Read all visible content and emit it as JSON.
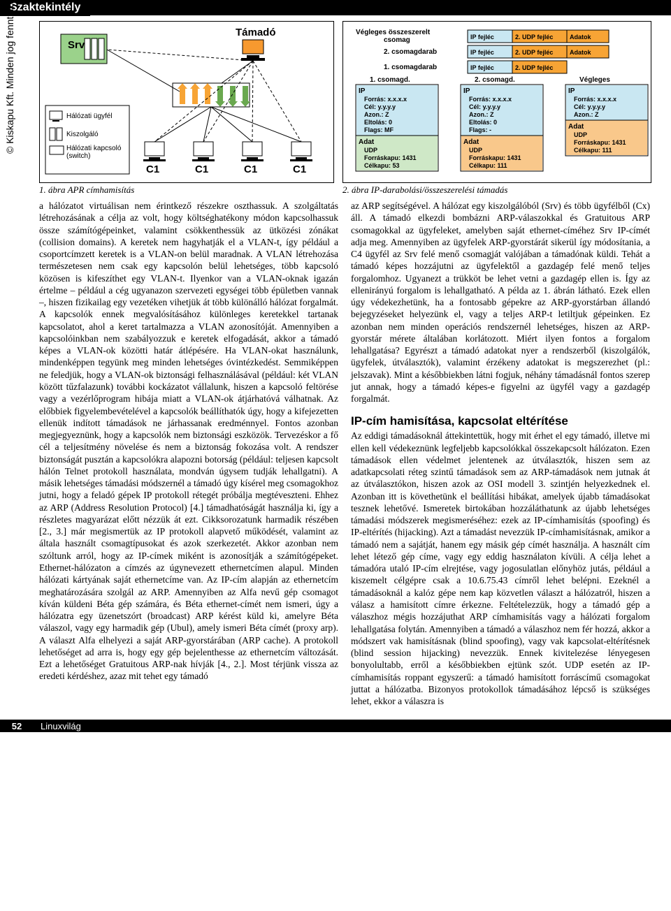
{
  "header": {
    "section": "Szaktekintély"
  },
  "copyright": "© Kiskapu Kft. Minden jog fenntartva",
  "footer": {
    "page": "52",
    "magazine": "Linuxvilág"
  },
  "fig1": {
    "caption": "1. ábra  APR címhamisítás",
    "srv_label": "Srv",
    "attacker_label": "Támadó",
    "client_labels": [
      "C1",
      "C1",
      "C1",
      "C1"
    ],
    "legend": {
      "items": [
        {
          "label": "Hálózati ügyfél"
        },
        {
          "label": "Kiszolgáló"
        },
        {
          "label": "Hálózati kapcsoló\n(switch)"
        }
      ]
    },
    "colors": {
      "border": "#000000",
      "srv_fill": "#9bd28b",
      "attacker_fill": "#f7992f",
      "client_fill": "#ffffff",
      "switch_body": "#ffffff",
      "arrow": "#000000",
      "dash": "#000000"
    }
  },
  "fig2": {
    "caption": "2. ábra  IP-darabolási/összeszerelési támadás",
    "rows_labels": [
      "Végleges összeszerelt csomag",
      "2. csomagdarab",
      "1. csomagdarab"
    ],
    "cell_labels": {
      "ip": "IP fejléc",
      "udp": "2. UDP fejléc",
      "data": "Adatok"
    },
    "row_segments": [
      [
        "ip",
        "udp",
        "data"
      ],
      [
        "ip",
        "udp",
        "data"
      ],
      [
        "ip",
        "udp"
      ]
    ],
    "boxes": [
      {
        "title": "1. csomagd.",
        "hdr": "IP",
        "lines": [
          "Forrás: x.x.x.x",
          "Cél: y.y.y.y",
          "Azon.: Z",
          "Eltolás: 0",
          "Flags: MF"
        ],
        "adat_title": "Adat",
        "adat_lines": [
          "UDP",
          "Forráskapu: 1431",
          "Célkapu: 53"
        ],
        "top_fill": "#c9e7f2",
        "bot_fill": "#cfe8c7"
      },
      {
        "title": "2. csomagd.",
        "hdr": "IP",
        "lines": [
          "Forrás: x.x.x.x",
          "Cél: y.y.y.y",
          "Azon.: Z",
          "Eltolás: 0",
          "Flags: -"
        ],
        "adat_title": "Adat",
        "adat_lines": [
          "UDP",
          "Forráskapu: 1431",
          "Célkapu: 111"
        ],
        "top_fill": "#c9e7f2",
        "bot_fill": "#f9c88b"
      },
      {
        "title": "Végleges",
        "hdr": "IP",
        "lines": [
          "Forrás: x.x.x.x",
          "Cél: y.y.y.y",
          "Azon.: Z"
        ],
        "adat_title": "Adat",
        "adat_lines": [
          "UDP",
          "Forráskapu: 1431",
          "Célkapu: 111"
        ],
        "top_fill": "#c9e7f2",
        "bot_fill": "#f9c88b"
      }
    ],
    "colors": {
      "border": "#000000",
      "ip_fill": "#c9e7f2",
      "udp_fill": "#f7a435",
      "data_fill": "#f7a435",
      "text": "#000000"
    }
  },
  "body": {
    "left": "a hálózatot virtuálisan nem érintkező részekre oszthassuk. A szolgáltatás létrehozásának a célja az volt, hogy költséghatékony módon kapcsolhassuk össze számítógépeinket, valamint csökkenthessük az ütközési zónákat (collision domains). A keretek nem hagyhatják el a VLAN-t, így például a csoportcímzett keretek is a VLAN-on belül maradnak. A VLAN létrehozása természetesen nem csak egy kapcsolón belül lehetséges, több kapcsoló közösen is kifeszíthet egy VLAN-t. Ilyenkor van a VLAN-oknak igazán értelme – például a cég ugyanazon szervezeti egységei több épületben vannak –, hiszen fizikailag egy vezetéken vihetjük át több különálló hálózat forgalmát. A kapcsolók ennek megvalósításához különleges keretekkel tartanak kapcsolatot, ahol a keret tartalmazza a VLAN azonosítóját. Amennyiben a kapcsolóinkban nem szabályozzuk e keretek elfogadását, akkor a támadó képes a VLAN-ok közötti határ átlépésére. Ha VLAN-okat használunk, mindenképpen tegyünk meg minden lehetséges óvintézkedést. Semmiképpen ne feledjük, hogy a VLAN-ok biztonsági felhasználásával (például: két VLAN között tűzfalazunk) további kockázatot vállalunk, hiszen a kapcsoló feltörése vagy a vezérlőprogram hibája miatt a VLAN-ok átjárhatóvá válhatnak. Az előbbiek figyelembevételével a kapcsolók beállíthatók úgy, hogy a kifejezetten ellenük indított támadások ne járhassanak eredménnyel. Fontos azonban megjegyeznünk, hogy a kapcsolók nem biztonsági eszközök. Tervezéskor a fő cél a teljesítmény növelése és nem a biztonság fokozása volt. A rendszer biztonságát pusztán a kapcsolókra alapozni botorság (például: teljesen kapcsolt hálón Telnet protokoll használata, mondván úgysem tudják lehallgatni). A másik lehetséges támadási módszernél a támadó úgy kísérel meg csomagokhoz jutni, hogy a feladó gépek IP protokoll rétegét próbálja megtéveszteni. Ehhez az ARP (Address Resolution Protocol) [4.] támadhatóságát használja ki, így a részletes magyarázat előtt nézzük át ezt. Cikksorozatunk harmadik részében [2., 3.] már megismertük az IP protokoll alapvető működését, valamint az általa használt csomagtípusokat és azok szerkezetét. Akkor azonban nem szóltunk arról, hogy az IP-címek miként is azonosítják a számítógépeket. Ethernet-hálózaton a címzés az úgynevezett ethernetcímen alapul. Minden hálózati kártyának saját ethernetcíme van. Az IP-cím alapján az ethernetcím meghatározására szolgál az ARP. Amennyiben az Alfa nevű gép csomagot kíván küldeni Béta gép számára, és Béta ethernet-címét nem ismeri, úgy a hálózatra egy üzenetszórt (broadcast) ARP kérést küld ki, amelyre Béta válaszol, vagy egy harmadik gép (Ubul), amely ismeri Béta címét (proxy arp). A választ Alfa elhelyezi a saját ARP-gyorstárában (ARP cache). A protokoll lehetőséget ad arra is, hogy egy gép bejelenthesse az ethernetcím változását. Ezt a lehetőséget Gratuitous ARP-nak hívják [4., 2.]. Most térjünk vissza az eredeti kérdéshez, azaz mit tehet egy támadó",
    "right_p1": "az ARP segítségével. A hálózat egy kiszolgálóból (Srv) és több ügyfélből (Cx) áll. A támadó elkezdi bombázni ARP-válaszokkal és Gratuitous ARP csomagokkal az ügyfeleket, amelyben saját ethernet-címéhez Srv IP-címét adja meg. Amennyiben az ügyfelek ARP-gyorstárát sikerül így módosítania, a C4 ügyfél az Srv felé menő csomagját valójában a támadónak küldi. Tehát a támadó képes hozzájutni az ügyfelektől a gazdagép felé menő teljes forgalomhoz. Ugyanezt a trükköt be lehet vetni a gazdagép ellen is. Így az ellenirányú forgalom is lehallgatható. A példa az 1. ábrán látható. Ezek ellen úgy védekezhetünk, ha a fontosabb gépekre az ARP-gyorstárban állandó bejegyzéseket helyezünk el, vagy a teljes ARP-t letiltjuk gépeinken. Ez azonban nem minden operációs rendszernél lehetséges, hiszen az ARP-gyorstár mérete általában korlátozott. Miért ilyen fontos a forgalom lehallgatása? Egyrészt a támadó adatokat nyer a rendszerből (kiszolgálók, ügyfelek, útválasztók), valamint érzékeny adatokat is megszerezhet (pl.: jelszavak). Mint a későbbiekben látni fogjuk, néhány támadásnál fontos szerep jut annak, hogy a támadó képes-e figyelni az ügyfél vagy a gazdagép forgalmát.",
    "right_h": "IP-cím hamisítása, kapcsolat eltérítése",
    "right_p2": "Az eddigi támadásoknál áttekintettük, hogy mit érhet el egy támadó, illetve mi ellen kell védekeznünk legfeljebb kapcsolókkal összekapcsolt hálózaton. Ezen támadások ellen védelmet jelentenek az útválasztók, hiszen sem az adatkapcsolati réteg szintű támadások sem az ARP-támadások nem jutnak át az útválasztókon, hiszen azok az OSI modell 3. szintjén helyezkednek el. Azonban itt is követhetünk el beállítási hibákat, amelyek újabb támadásokat tesznek lehetővé. Ismeretek birtokában hozzáláthatunk az újabb lehetséges támadási módszerek megismeréséhez: ezek az IP-címhamisítás (spoofing) és IP-eltérítés (hijacking). Azt a támadást nevezzük IP-címhamisításnak, amikor a támadó nem a sajátját, hanem egy másik gép címét használja. A használt cím lehet létező gép címe, vagy egy eddig használaton kívüli. A célja lehet a támadóra utaló IP-cím elrejtése, vagy jogosulatlan előnyhöz jutás, például a kiszemelt célgépre csak a 10.6.75.43 címről lehet belépni. Ezeknél a támadásoknál a kalóz gépe nem kap közvetlen választ a hálózatról, hiszen a válasz a hamisított címre érkezne. Feltételezzük, hogy a támadó gép a válaszhoz mégis hozzájuthat ARP címhamisítás vagy a hálózati forgalom lehallgatása folytán. Amennyiben a támadó a válaszhoz nem fér hozzá, akkor a módszert vak hamisításnak (blind spoofing), vagy vak kapcsolat-eltérítésnek (blind session hijacking) nevezzük. Ennek kivitelezése lényegesen bonyolultabb, erről a későbbiekben ejtünk szót. UDP esetén az IP-címhamisítás roppant egyszerű: a támadó hamisított forráscímű csomagokat juttat a hálózatba. Bizonyos protokollok támadásához lépcső is szükséges lehet, ekkor a válaszra is"
  }
}
